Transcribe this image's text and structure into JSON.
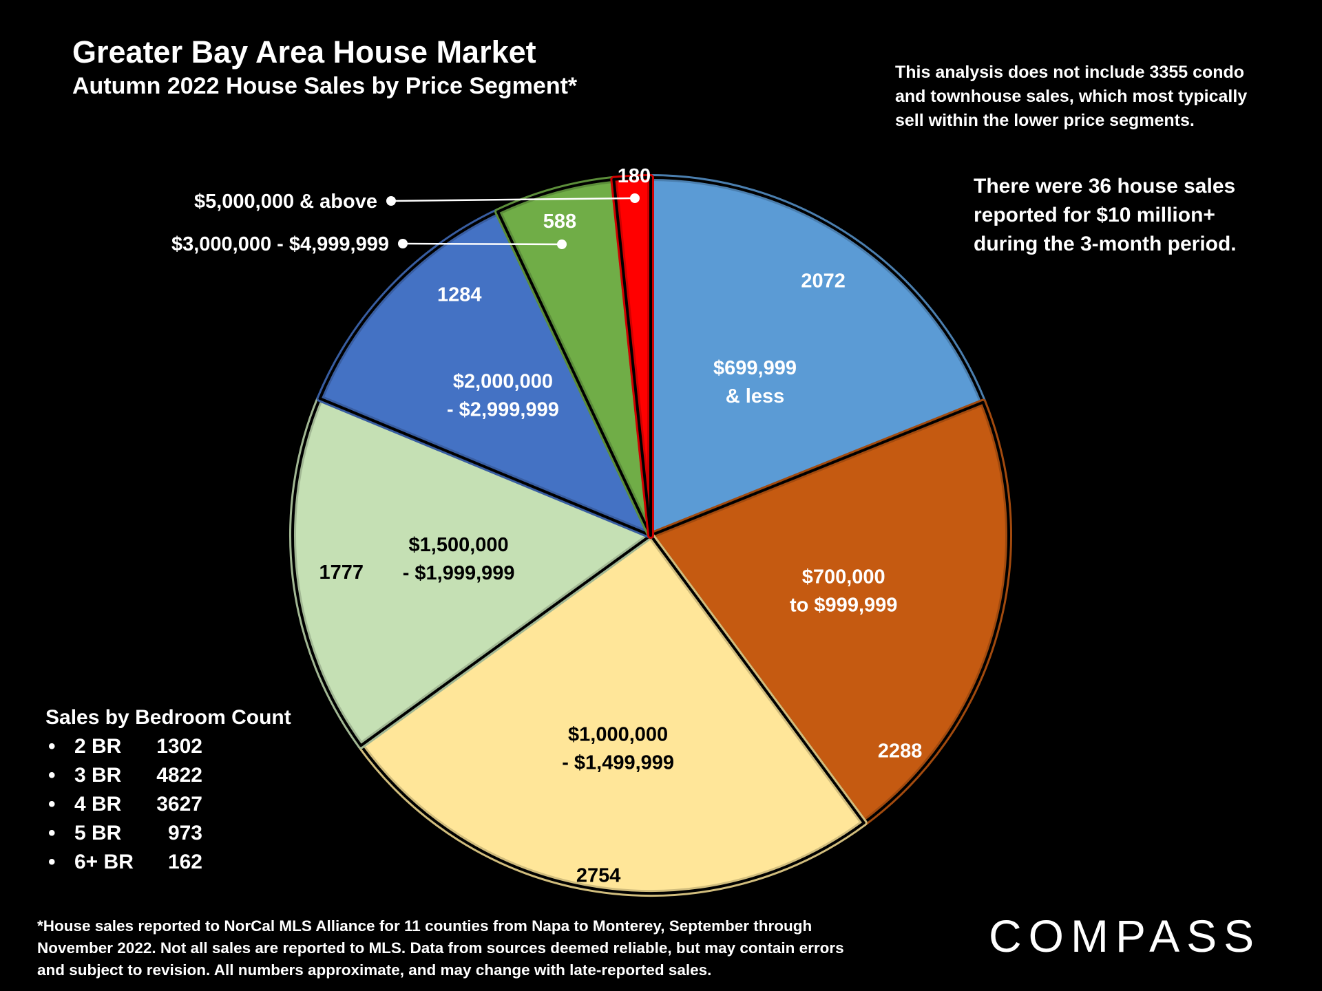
{
  "title": "Greater Bay Area House Market",
  "subtitle": "Autumn 2022 House Sales by Price Segment*",
  "note_condo": "This analysis does not include 3355 condo and townhouse sales, which most typically sell within the lower price segments.",
  "note_10m_lines": [
    "There were 36 house sales",
    "reported for $10 million+",
    "during the 3-month period."
  ],
  "bedrooms": {
    "heading": "Sales by Bedroom Count",
    "bullet": "•",
    "rows": [
      {
        "label": "2 BR",
        "count": "1302"
      },
      {
        "label": "3 BR",
        "count": "4822"
      },
      {
        "label": "4 BR",
        "count": "3627"
      },
      {
        "label": "5 BR",
        "count": "973"
      },
      {
        "label": "6+ BR",
        "count": "162"
      }
    ]
  },
  "footnote": "*House sales reported to NorCal MLS Alliance for 11 counties from Napa to Monterey, September through November 2022. Not all sales are reported to MLS. Data from sources deemed reliable, but may contain errors and subject to revision. All numbers approximate, and may change with late-reported sales.",
  "logo": "COMPASS",
  "chart_data": {
    "type": "pie",
    "title": "Autumn 2022 House Sales by Price Segment*",
    "start_angle_deg": 0,
    "direction": "clockwise",
    "slices": [
      {
        "value": 2072,
        "label_lines": [
          "$699,999",
          "& less"
        ],
        "value_label": "2072",
        "color": "#5B9BD5",
        "text_color": "#ffffff"
      },
      {
        "value": 2288,
        "label_lines": [
          "$700,000",
          "to $999,999"
        ],
        "value_label": "2288",
        "color": "#C55A11",
        "text_color": "#ffffff"
      },
      {
        "value": 2754,
        "label_lines": [
          "$1,000,000",
          "- $1,499,999"
        ],
        "value_label": "2754",
        "color": "#FFE699",
        "text_color": "#000000"
      },
      {
        "value": 1777,
        "label_lines": [
          "$1,500,000",
          "- $1,999,999"
        ],
        "value_label": "1777",
        "color": "#C5E0B4",
        "text_color": "#000000"
      },
      {
        "value": 1284,
        "label_lines": [
          "$2,000,000",
          "- $2,999,999"
        ],
        "value_label": "1284",
        "color": "#4472C4",
        "text_color": "#ffffff"
      },
      {
        "value": 588,
        "label_lines": [],
        "callout_label": "$3,000,000 - $4,999,999",
        "value_label": "588",
        "color": "#70AD47",
        "text_color": "#ffffff"
      },
      {
        "value": 180,
        "label_lines": [],
        "callout_label": "$5,000,000 & above",
        "value_label": "180",
        "color": "#FF0000",
        "text_color": "#ffffff"
      }
    ]
  }
}
